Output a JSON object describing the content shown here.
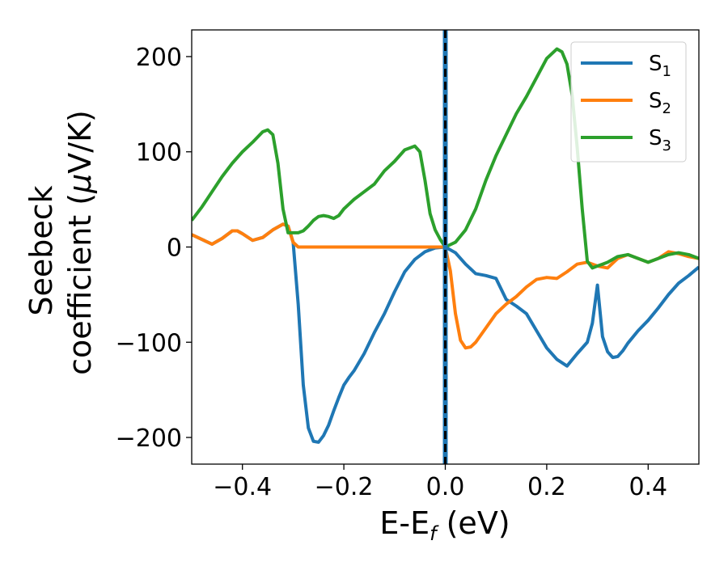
{
  "chart_data": {
    "type": "line",
    "title": "",
    "xlabel": {
      "base": "E-E",
      "sub": "f",
      "tail": " (eV)"
    },
    "ylabel": {
      "line1": "Seebeck",
      "line2_pre": "coefficient  (",
      "mu": "μ",
      "line2_post": "V/K)"
    },
    "xlim": [
      -0.5,
      0.5
    ],
    "ylim": [
      -228,
      228
    ],
    "xticks": [
      -0.4,
      -0.2,
      0.0,
      0.2,
      0.4
    ],
    "xtick_labels": [
      "−0.4",
      "−0.2",
      "0.0",
      "0.2",
      "0.4"
    ],
    "yticks": [
      -200,
      -100,
      0,
      100,
      200
    ],
    "ytick_labels": [
      "−200",
      "−100",
      "0",
      "100",
      "200"
    ],
    "grid": false,
    "legend_position": "top-right",
    "vline": {
      "x": 0.0,
      "colors": [
        "#1f77b4",
        "#000000"
      ],
      "style": "dashed"
    },
    "series": [
      {
        "name": "S",
        "sub": "1",
        "color": "#1f77b4",
        "x": [
          -0.5,
          -0.48,
          -0.46,
          -0.44,
          -0.42,
          -0.41,
          -0.4,
          -0.38,
          -0.36,
          -0.34,
          -0.32,
          -0.31,
          -0.3,
          -0.29,
          -0.28,
          -0.27,
          -0.26,
          -0.25,
          -0.24,
          -0.23,
          -0.22,
          -0.21,
          -0.2,
          -0.19,
          -0.18,
          -0.16,
          -0.14,
          -0.12,
          -0.1,
          -0.08,
          -0.06,
          -0.04,
          -0.02,
          0.0,
          0.02,
          0.04,
          0.06,
          0.08,
          0.1,
          0.12,
          0.14,
          0.16,
          0.18,
          0.2,
          0.22,
          0.24,
          0.26,
          0.28,
          0.29,
          0.3,
          0.31,
          0.32,
          0.33,
          0.34,
          0.35,
          0.36,
          0.38,
          0.4,
          0.42,
          0.44,
          0.46,
          0.48,
          0.5
        ],
        "y": [
          13,
          8,
          3,
          9,
          17,
          17,
          14,
          7,
          10,
          18,
          24,
          22,
          5,
          -60,
          -145,
          -190,
          -204,
          -205,
          -198,
          -187,
          -172,
          -158,
          -145,
          -137,
          -130,
          -112,
          -90,
          -70,
          -47,
          -26,
          -13,
          -5,
          -1,
          0,
          -6,
          -18,
          -28,
          -30,
          -33,
          -55,
          -62,
          -70,
          -88,
          -106,
          -118,
          -125,
          -112,
          -100,
          -80,
          -40,
          -94,
          -110,
          -116,
          -115,
          -109,
          -101,
          -88,
          -77,
          -64,
          -50,
          -38,
          -30,
          -21
        ]
      },
      {
        "name": "S",
        "sub": "2",
        "color": "#ff7f0e",
        "x": [
          -0.5,
          -0.48,
          -0.46,
          -0.44,
          -0.42,
          -0.41,
          -0.4,
          -0.38,
          -0.36,
          -0.34,
          -0.32,
          -0.31,
          -0.3,
          -0.29,
          -0.28,
          -0.27,
          -0.26,
          -0.25,
          -0.24,
          -0.23,
          -0.22,
          -0.21,
          -0.2,
          -0.19,
          -0.18,
          -0.16,
          -0.14,
          -0.12,
          -0.1,
          -0.08,
          -0.06,
          -0.04,
          -0.02,
          0.0,
          0.01,
          0.02,
          0.03,
          0.04,
          0.05,
          0.06,
          0.08,
          0.1,
          0.12,
          0.14,
          0.16,
          0.18,
          0.2,
          0.22,
          0.24,
          0.26,
          0.28,
          0.3,
          0.32,
          0.34,
          0.36,
          0.38,
          0.4,
          0.42,
          0.44,
          0.46,
          0.48,
          0.5
        ],
        "y": [
          13,
          8,
          3,
          9,
          17,
          17,
          14,
          7,
          10,
          18,
          24,
          22,
          5,
          0,
          0,
          0,
          0,
          0,
          0,
          0,
          0,
          0,
          0,
          0,
          0,
          0,
          0,
          0,
          0,
          0,
          0,
          0,
          0,
          0,
          -25,
          -70,
          -98,
          -106,
          -105,
          -100,
          -85,
          -70,
          -60,
          -52,
          -42,
          -34,
          -32,
          -33,
          -26,
          -18,
          -16,
          -20,
          -22,
          -12,
          -8,
          -12,
          -16,
          -12,
          -5,
          -7,
          -10,
          -12
        ]
      },
      {
        "name": "S",
        "sub": "3",
        "color": "#2ca02c",
        "x": [
          -0.5,
          -0.48,
          -0.46,
          -0.44,
          -0.42,
          -0.4,
          -0.38,
          -0.36,
          -0.35,
          -0.34,
          -0.33,
          -0.32,
          -0.31,
          -0.3,
          -0.29,
          -0.28,
          -0.27,
          -0.26,
          -0.25,
          -0.24,
          -0.23,
          -0.22,
          -0.21,
          -0.2,
          -0.18,
          -0.16,
          -0.14,
          -0.12,
          -0.1,
          -0.08,
          -0.06,
          -0.05,
          -0.04,
          -0.03,
          -0.02,
          -0.01,
          0.0,
          0.02,
          0.04,
          0.06,
          0.08,
          0.1,
          0.12,
          0.14,
          0.16,
          0.18,
          0.2,
          0.22,
          0.23,
          0.24,
          0.25,
          0.26,
          0.27,
          0.28,
          0.29,
          0.3,
          0.31,
          0.32,
          0.34,
          0.36,
          0.38,
          0.4,
          0.42,
          0.44,
          0.46,
          0.48,
          0.5
        ],
        "y": [
          28,
          42,
          58,
          74,
          88,
          100,
          110,
          121,
          123,
          118,
          88,
          40,
          15,
          15,
          15,
          17,
          22,
          28,
          32,
          33,
          32,
          30,
          33,
          40,
          50,
          58,
          66,
          80,
          90,
          102,
          106,
          100,
          70,
          35,
          18,
          8,
          0,
          5,
          18,
          40,
          70,
          96,
          118,
          140,
          158,
          178,
          198,
          208,
          205,
          192,
          160,
          105,
          40,
          -15,
          -22,
          -20,
          -18,
          -16,
          -10,
          -8,
          -12,
          -16,
          -12,
          -8,
          -6,
          -8,
          -12
        ]
      }
    ]
  }
}
